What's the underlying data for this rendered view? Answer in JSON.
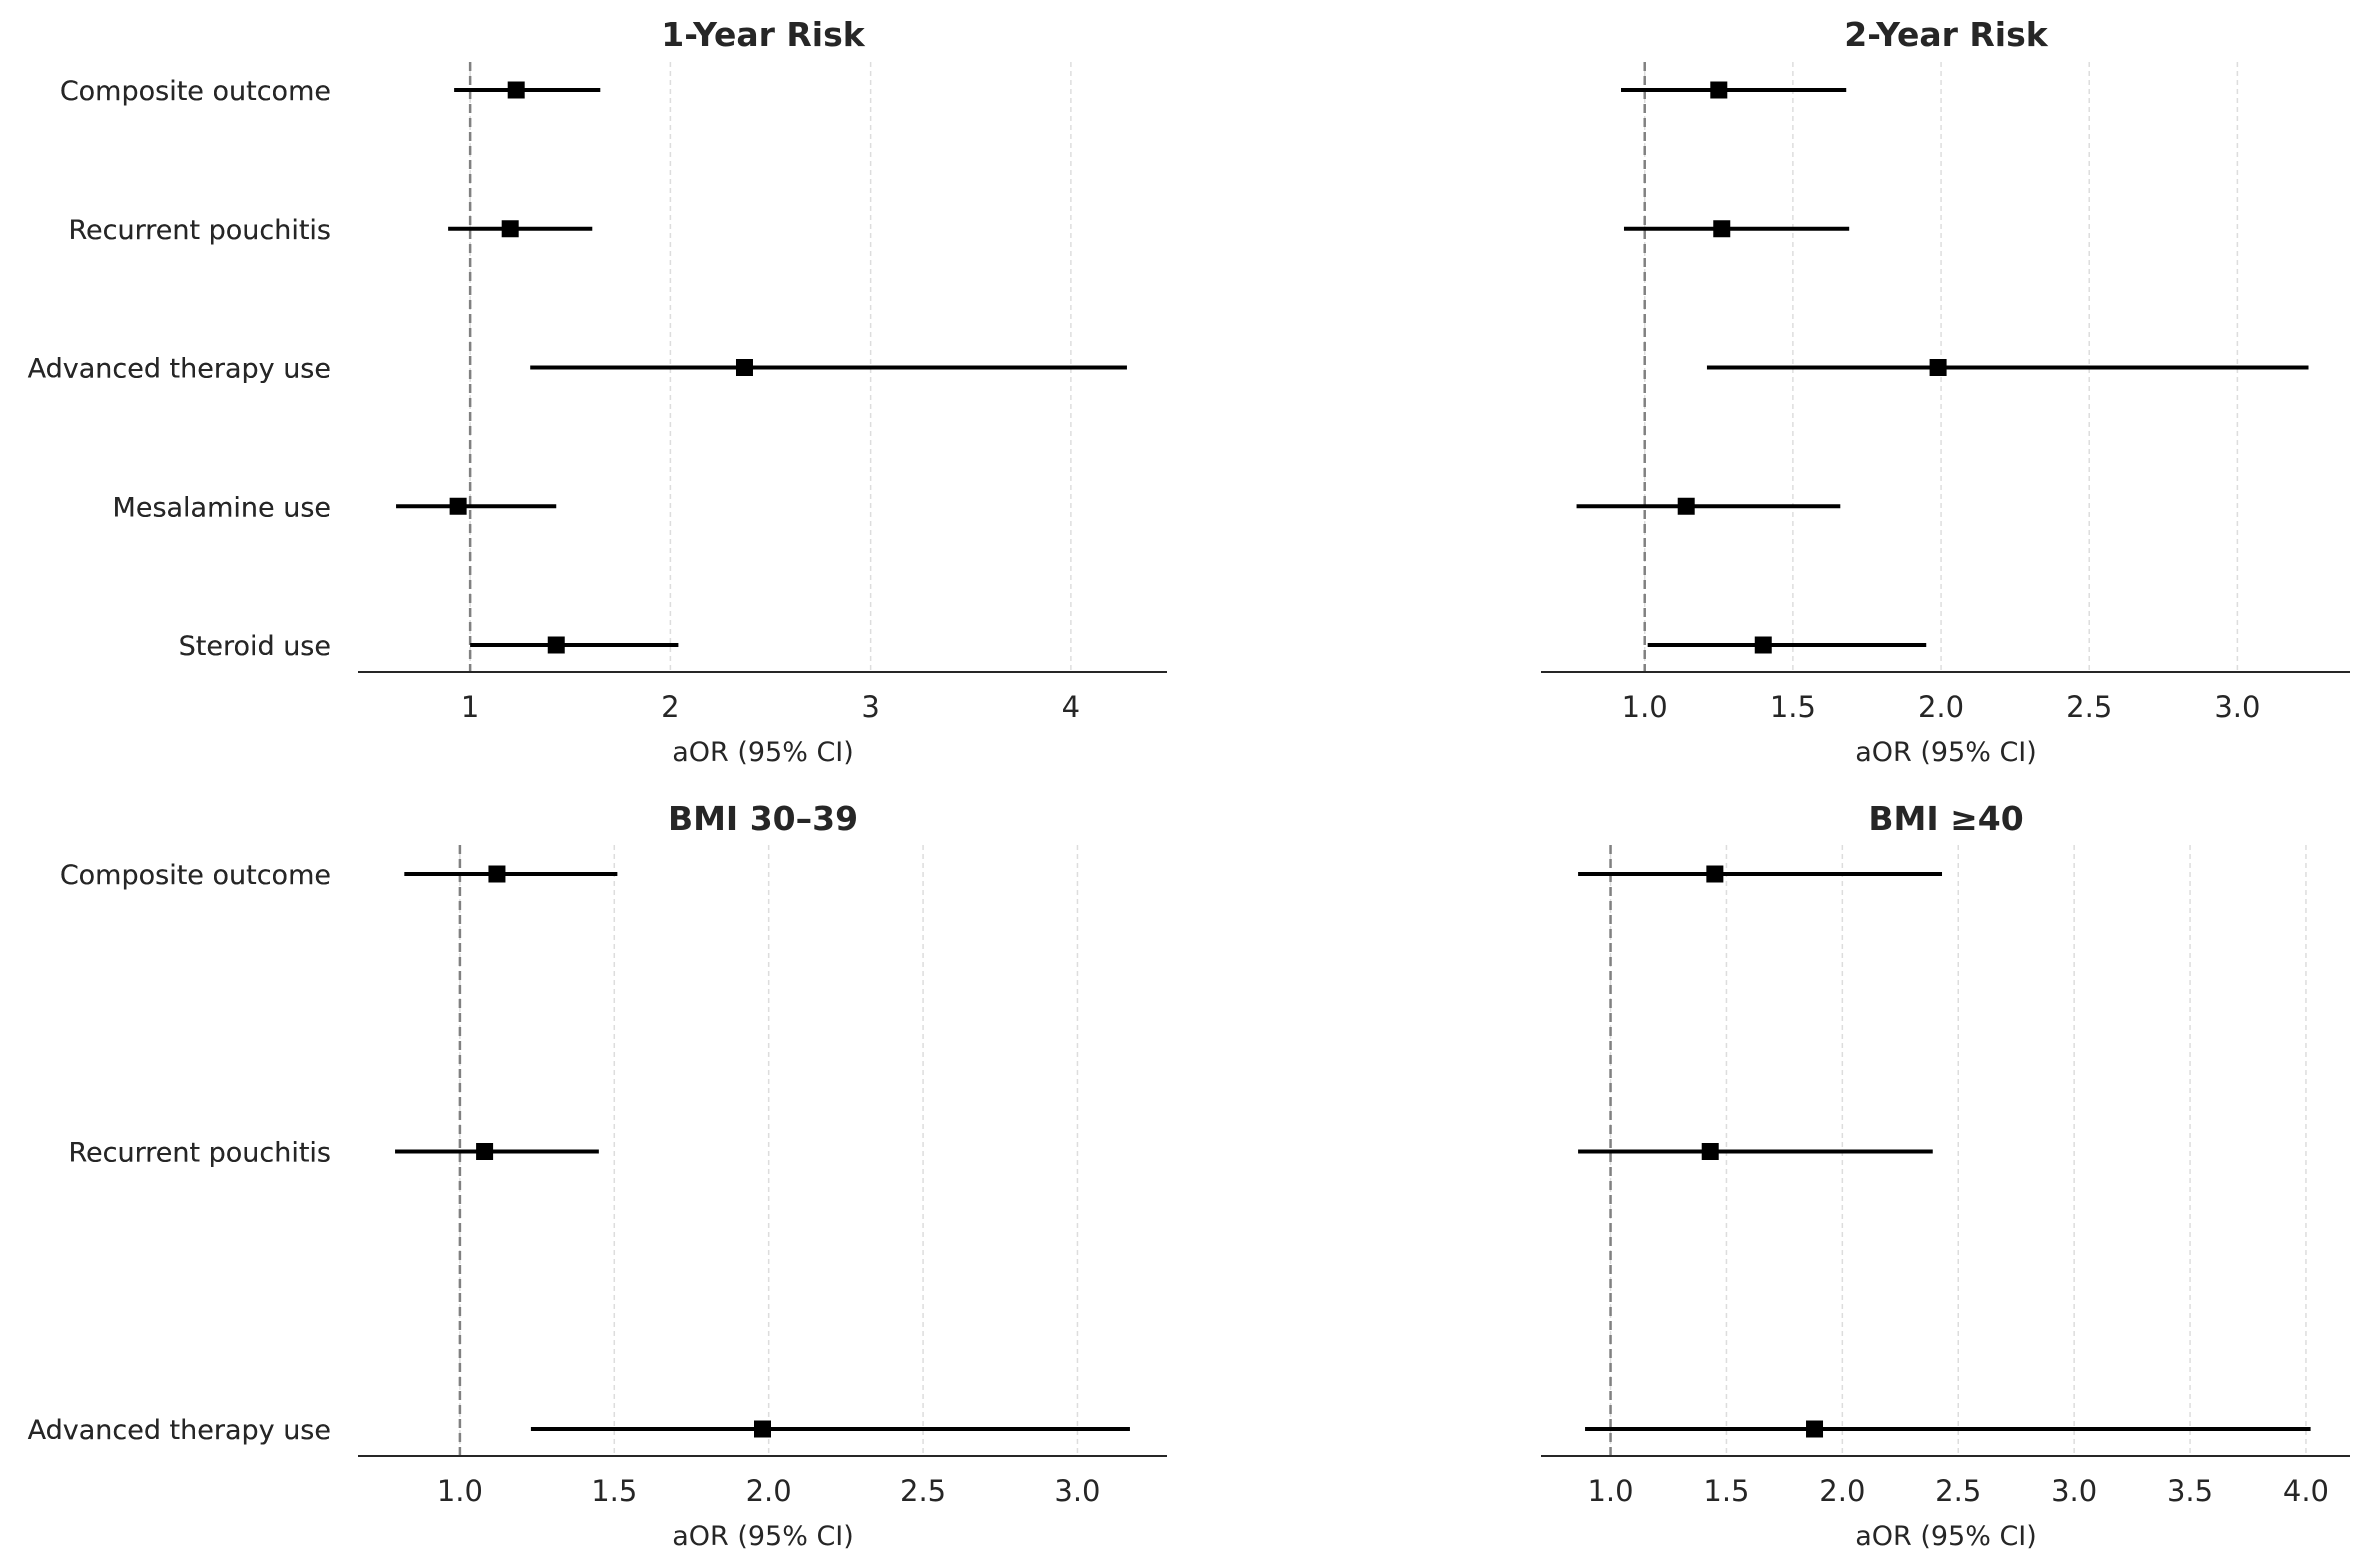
{
  "chart_data": [
    {
      "type": "forest",
      "title": "1-Year Risk",
      "xlabel": "aOR (95% CI)",
      "xlim": [
        0.44,
        4.48
      ],
      "xticks": [
        1,
        2,
        3,
        4
      ],
      "xtick_labels": [
        "1",
        "2",
        "3",
        "4"
      ],
      "reference_line": 1,
      "grid": "vertical dashed",
      "outcomes": [
        "Composite outcome",
        "Recurrent pouchitis",
        "Advanced therapy use",
        "Mesalamine use",
        "Steroid use"
      ],
      "estimates": [
        1.23,
        1.2,
        2.37,
        0.94,
        1.43
      ],
      "ci_lower": [
        0.92,
        0.89,
        1.3,
        0.63,
        1.0
      ],
      "ci_upper": [
        1.65,
        1.61,
        4.28,
        1.43,
        2.04
      ]
    },
    {
      "type": "forest",
      "title": "2-Year Risk",
      "xlabel": "aOR (95% CI)",
      "xlim": [
        0.65,
        3.38
      ],
      "xticks": [
        1.0,
        1.5,
        2.0,
        2.5,
        3.0
      ],
      "xtick_labels": [
        "1.0",
        "1.5",
        "2.0",
        "2.5",
        "3.0"
      ],
      "reference_line": 1,
      "grid": "vertical dashed",
      "outcomes": [
        "Composite outcome",
        "Recurrent pouchitis",
        "Advanced therapy use",
        "Mesalamine use",
        "Steroid use"
      ],
      "estimates": [
        1.25,
        1.26,
        1.99,
        1.14,
        1.4
      ],
      "ci_lower": [
        0.92,
        0.93,
        1.21,
        0.77,
        1.01
      ],
      "ci_upper": [
        1.68,
        1.69,
        3.24,
        1.66,
        1.95
      ]
    },
    {
      "type": "forest",
      "title": "BMI 30–39",
      "xlabel": "aOR (95% CI)",
      "xlim": [
        0.67,
        3.29
      ],
      "xticks": [
        1.0,
        1.5,
        2.0,
        2.5,
        3.0
      ],
      "xtick_labels": [
        "1.0",
        "1.5",
        "2.0",
        "2.5",
        "3.0"
      ],
      "reference_line": 1,
      "grid": "vertical dashed",
      "outcomes": [
        "Composite outcome",
        "Recurrent pouchitis",
        "Advanced therapy use"
      ],
      "estimates": [
        1.12,
        1.08,
        1.98
      ],
      "ci_lower": [
        0.82,
        0.79,
        1.23
      ],
      "ci_upper": [
        1.51,
        1.45,
        3.17
      ]
    },
    {
      "type": "forest",
      "title": "BMI ≥40",
      "xlabel": "aOR (95% CI)",
      "xlim": [
        0.7,
        4.19
      ],
      "xticks": [
        1.0,
        1.5,
        2.0,
        2.5,
        3.0,
        3.5,
        4.0
      ],
      "xtick_labels": [
        "1.0",
        "1.5",
        "2.0",
        "2.5",
        "3.0",
        "3.5",
        "4.0"
      ],
      "reference_line": 1,
      "grid": "vertical dashed",
      "outcomes": [
        "Composite outcome",
        "Recurrent pouchitis",
        "Advanced therapy use"
      ],
      "estimates": [
        1.45,
        1.43,
        1.88
      ],
      "ci_lower": [
        0.86,
        0.86,
        0.89
      ],
      "ci_upper": [
        2.43,
        2.39,
        4.02
      ]
    }
  ],
  "style": {
    "marker_color": "#000000",
    "ci_color": "#000000",
    "reference_color": "#808080",
    "grid_color": "#dddddd",
    "axis_color": "#262626"
  }
}
